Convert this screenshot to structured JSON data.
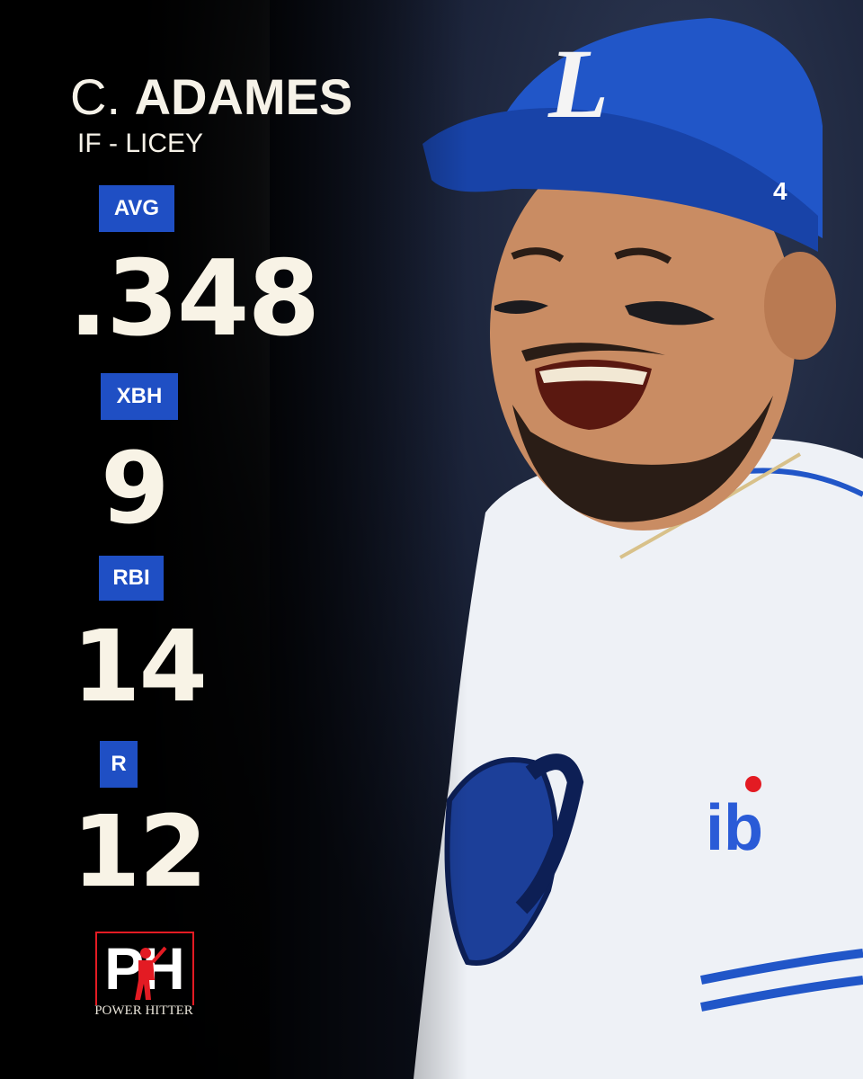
{
  "player": {
    "first": "C.",
    "last": "ADAMES",
    "position": "IF - LICEY"
  },
  "stats": [
    {
      "label": "AVG",
      "value": ".348"
    },
    {
      "label": "XBH",
      "value": "9"
    },
    {
      "label": "RBI",
      "value": "14"
    },
    {
      "label": "R",
      "value": "12"
    }
  ],
  "brand": {
    "logo_letters": "PH",
    "logo_text": "POWER HITTER"
  },
  "colors": {
    "badge": "#1f4fc4",
    "cap": "#2156c8",
    "jersey": "#eef1f6",
    "logo_red": "#e31b23"
  }
}
